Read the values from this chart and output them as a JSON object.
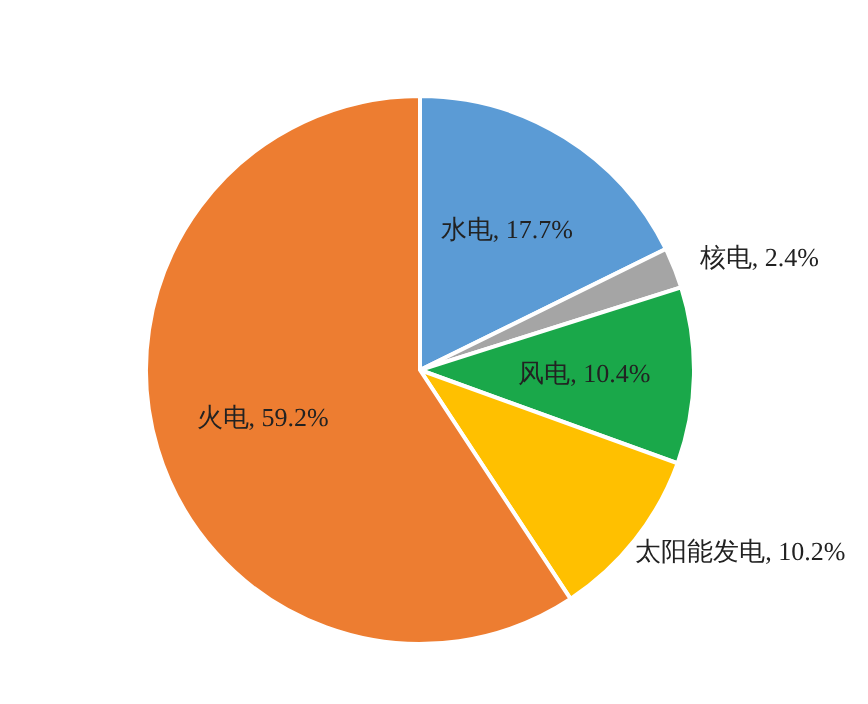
{
  "chart_data": {
    "type": "pie",
    "categories": [
      "水电",
      "核电",
      "风电",
      "太阳能发电",
      "火电"
    ],
    "values": [
      17.7,
      2.4,
      10.4,
      10.2,
      59.2
    ],
    "colors": [
      "#5b9bd5",
      "#a5a5a5",
      "#1aa84a",
      "#ffc000",
      "#ed7d31"
    ],
    "value_labels": [
      "17.7%",
      "2.4%",
      "10.4%",
      "10.2%",
      "59.2%"
    ]
  }
}
